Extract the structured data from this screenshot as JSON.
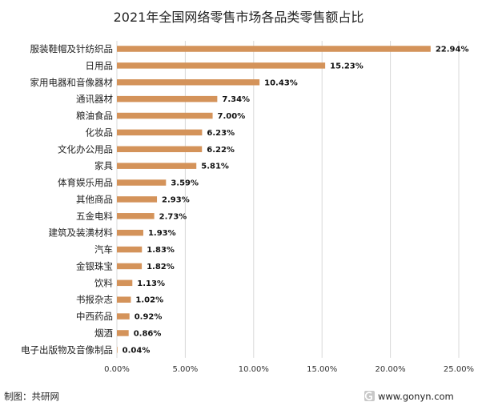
{
  "chart_data": {
    "type": "bar",
    "orientation": "horizontal",
    "title": "2021年全国网络零售市场各品类零售额占比",
    "categories": [
      "服装鞋帽及针纺织品",
      "日用品",
      "家用电器和音像器材",
      "通讯器材",
      "粮油食品",
      "化妆品",
      "文化办公用品",
      "家具",
      "体育娱乐用品",
      "其他商品",
      "五金电料",
      "建筑及装潢材料",
      "汽车",
      "金银珠宝",
      "饮料",
      "书报杂志",
      "中西药品",
      "烟酒",
      "电子出版物及音像制品"
    ],
    "values": [
      22.94,
      15.23,
      10.43,
      7.34,
      7.0,
      6.23,
      6.22,
      5.81,
      3.59,
      2.93,
      2.73,
      1.93,
      1.83,
      1.82,
      1.13,
      1.02,
      0.92,
      0.86,
      0.04
    ],
    "value_labels": [
      "22.94%",
      "15.23%",
      "10.43%",
      "7.34%",
      "7.00%",
      "6.23%",
      "6.22%",
      "5.81%",
      "3.59%",
      "2.93%",
      "2.73%",
      "1.93%",
      "1.83%",
      "1.82%",
      "1.13%",
      "1.02%",
      "0.92%",
      "0.86%",
      "0.04%"
    ],
    "xlim": [
      0,
      25
    ],
    "x_ticks": [
      0,
      5,
      10,
      15,
      20,
      25
    ],
    "x_tick_labels": [
      "0.00%",
      "5.00%",
      "10.00%",
      "15.00%",
      "20.00%",
      "25.00%"
    ],
    "grid": "vertical",
    "legend": "none",
    "bar_color": "#D4935A"
  },
  "footer": {
    "source": "制图：共研网",
    "website": "www.gonyn.com"
  }
}
